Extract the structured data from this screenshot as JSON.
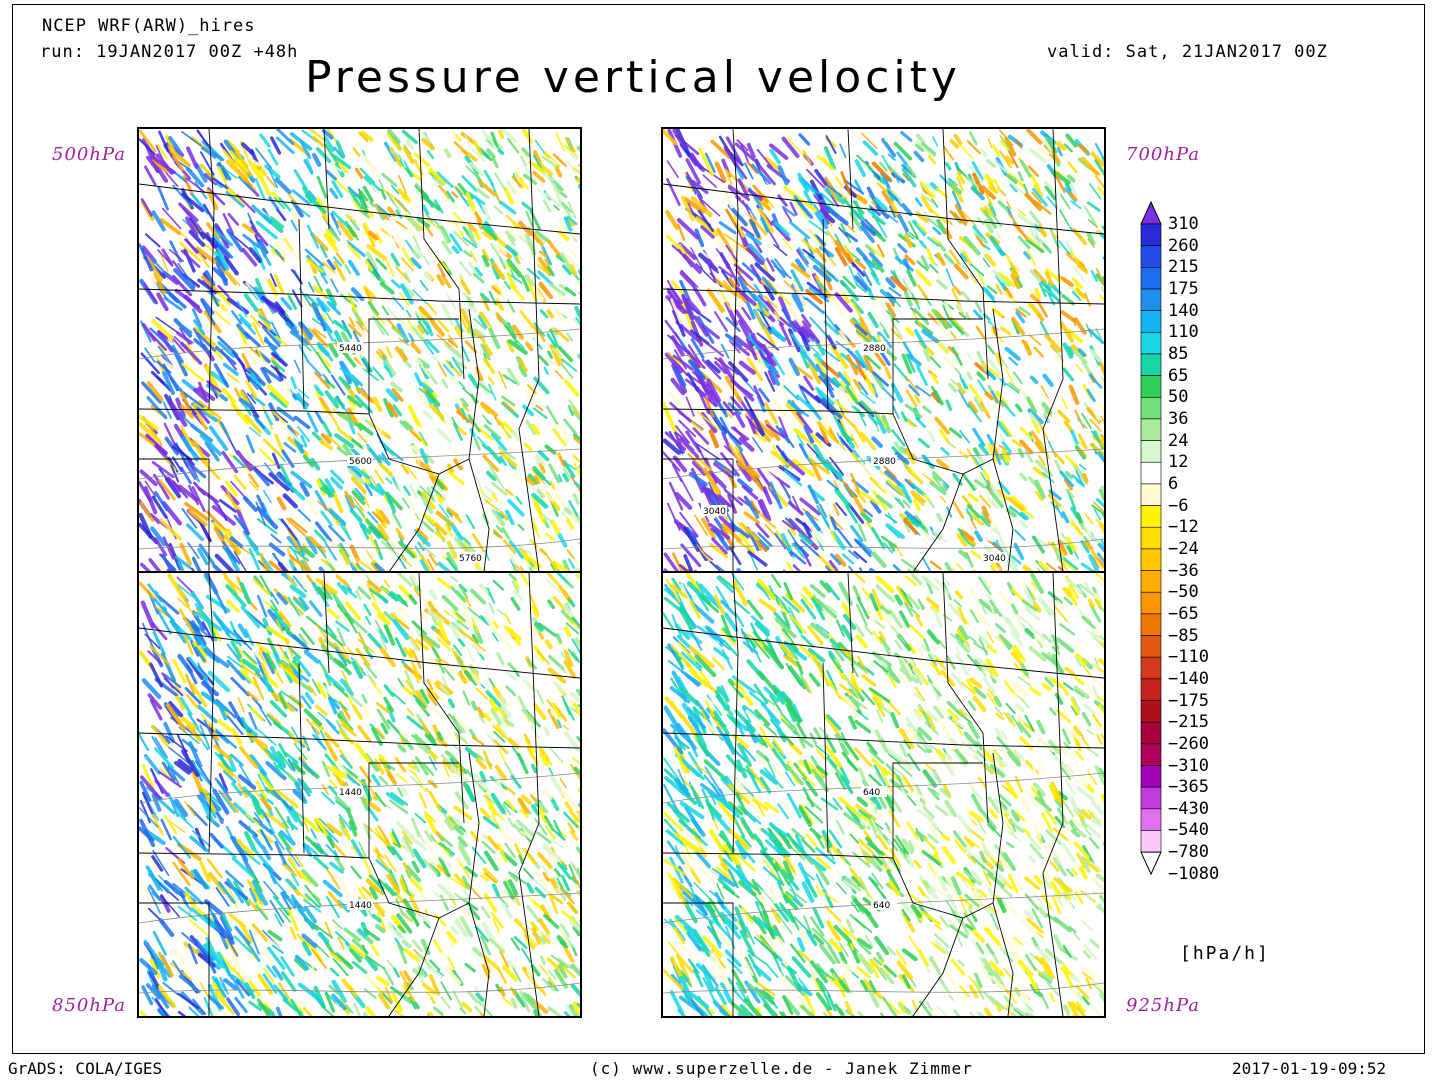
{
  "header": {
    "model": "NCEP WRF(ARW)_hires",
    "run": "run: 19JAN2017 00Z +48h",
    "valid": "valid: Sat, 21JAN2017 00Z",
    "title": "Pressure vertical velocity"
  },
  "panels": [
    {
      "level": "500hPa",
      "contours": [
        {
          "label": "5440"
        },
        {
          "label": "5600"
        },
        {
          "label": "5760"
        }
      ]
    },
    {
      "level": "700hPa",
      "contours": [
        {
          "label": "2880"
        },
        {
          "label": "2880"
        },
        {
          "label": "3040"
        },
        {
          "label": "3040"
        }
      ]
    },
    {
      "level": "850hPa",
      "contours": [
        {
          "label": "1440"
        },
        {
          "label": "1440"
        }
      ]
    },
    {
      "level": "925hPa",
      "contours": [
        {
          "label": "640"
        },
        {
          "label": "640"
        }
      ]
    }
  ],
  "colorbar": {
    "unit": "[hPa/h]",
    "labels": [
      "310",
      "260",
      "215",
      "175",
      "140",
      "110",
      "85",
      "65",
      "50",
      "36",
      "24",
      "12",
      "6",
      "−6",
      "−12",
      "−24",
      "−36",
      "−50",
      "−65",
      "−85",
      "−110",
      "−140",
      "−175",
      "−215",
      "−260",
      "−310",
      "−365",
      "−430",
      "−540",
      "−780",
      "−1080"
    ],
    "colors": [
      "#7b2fe0",
      "#2a2ad8",
      "#1f4de6",
      "#1e6df0",
      "#1f8ff0",
      "#17b4f5",
      "#18d6e6",
      "#16d6a8",
      "#2ecf5a",
      "#6fe07a",
      "#a8ec9a",
      "#d6f6cc",
      "#ffffff",
      "#fffbd0",
      "#fff400",
      "#ffdd00",
      "#ffc800",
      "#ffae00",
      "#ff9500",
      "#ee7800",
      "#e05a10",
      "#d43a1e",
      "#c4221e",
      "#b0101e",
      "#a8003c",
      "#b0005a",
      "#a000b4",
      "#c43cdc",
      "#e070f0",
      "#fac8fa"
    ]
  },
  "footer": {
    "left": "GrADS: COLA/IGES",
    "center": "(c) www.superzelle.de - Janek Zimmer",
    "right": "2017-01-19-09:52"
  }
}
